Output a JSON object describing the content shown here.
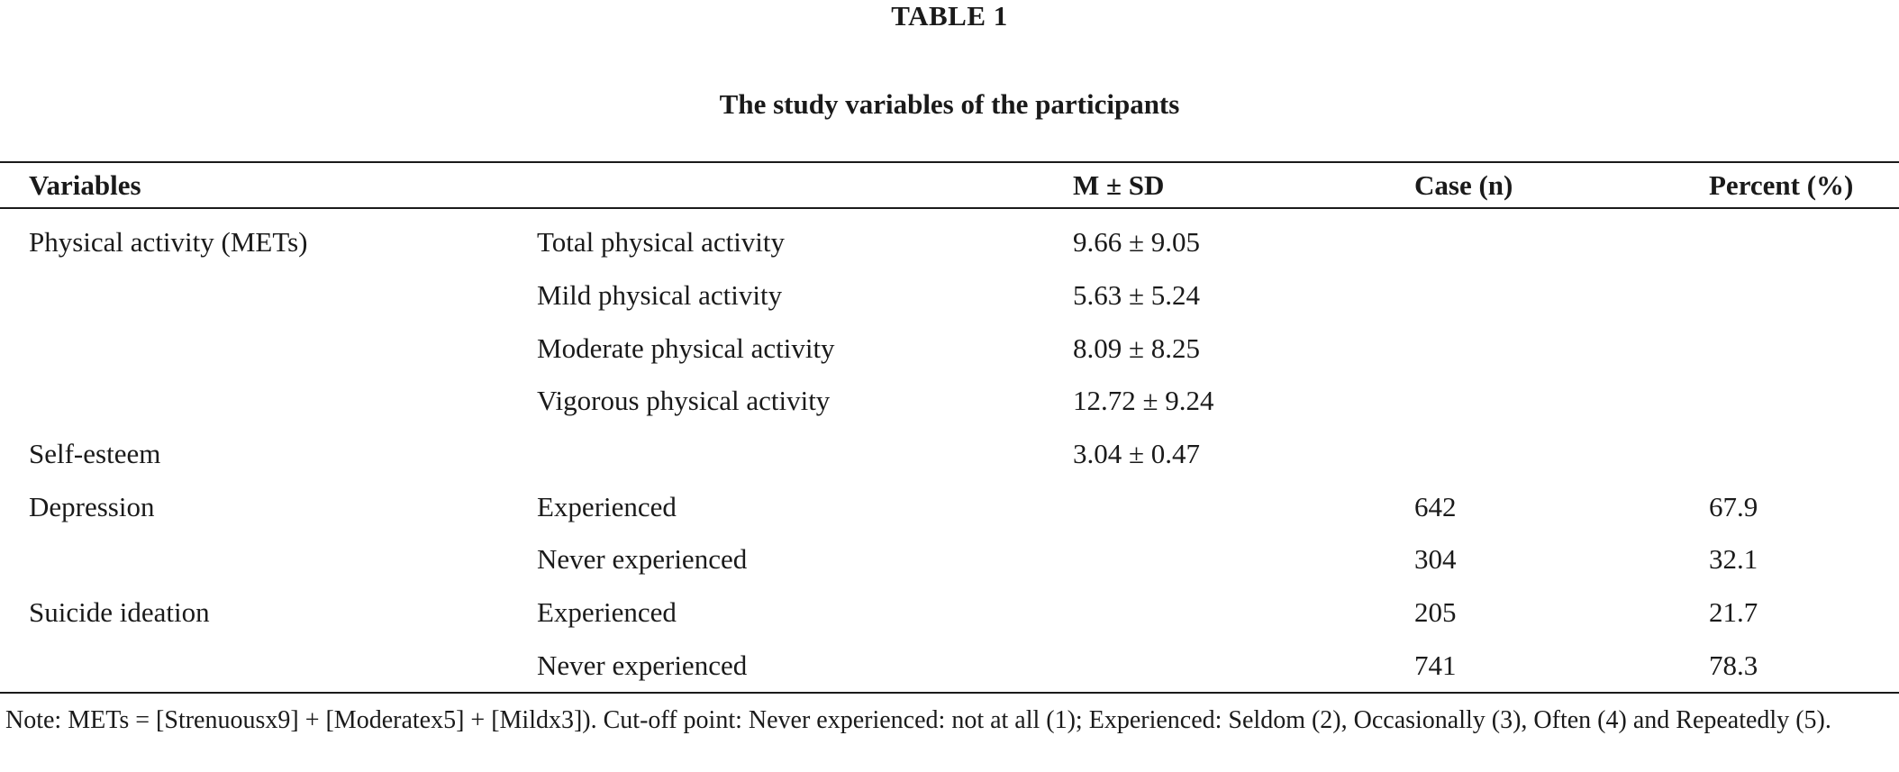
{
  "table_number": "TABLE 1",
  "title": "The study variables of the participants",
  "headers": {
    "variables": "Variables",
    "sub": "",
    "mean_sd": "M ± SD",
    "case": "Case (n)",
    "percent": "Percent (%)"
  },
  "rows": [
    {
      "variable": "Physical activity (METs)",
      "sub": "Total physical activity",
      "mean_sd": "9.66 ± 9.05",
      "case": "",
      "percent": ""
    },
    {
      "variable": "",
      "sub": "Mild physical activity",
      "mean_sd": "5.63 ± 5.24",
      "case": "",
      "percent": ""
    },
    {
      "variable": "",
      "sub": "Moderate physical activity",
      "mean_sd": "8.09 ± 8.25",
      "case": "",
      "percent": ""
    },
    {
      "variable": "",
      "sub": "Vigorous physical activity",
      "mean_sd": "12.72 ± 9.24",
      "case": "",
      "percent": ""
    },
    {
      "variable": "Self-esteem",
      "sub": "",
      "mean_sd": "3.04 ± 0.47",
      "case": "",
      "percent": ""
    },
    {
      "variable": "Depression",
      "sub": "Experienced",
      "mean_sd": "",
      "case": "642",
      "percent": "67.9"
    },
    {
      "variable": "",
      "sub": "Never experienced",
      "mean_sd": "",
      "case": "304",
      "percent": "32.1"
    },
    {
      "variable": "Suicide ideation",
      "sub": "Experienced",
      "mean_sd": "",
      "case": "205",
      "percent": "21.7"
    },
    {
      "variable": "",
      "sub": "Never experienced",
      "mean_sd": "",
      "case": "741",
      "percent": "78.3"
    }
  ],
  "note": "Note: METs = [Strenuousx9] + [Moderatex5] + [Mildx3]). Cut-off point: Never experienced: not at all (1); Experienced: Seldom (2), Occasionally (3), Often (4) and Repeatedly (5)."
}
